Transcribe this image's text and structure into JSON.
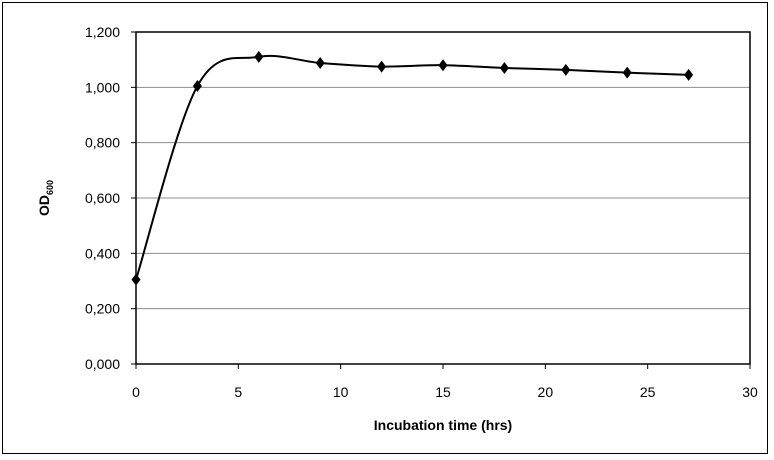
{
  "chart_data": {
    "type": "line",
    "title": "",
    "xlabel": "Incubation time (hrs)",
    "ylabel": {
      "main": "OD",
      "subscript": "600"
    },
    "xlim": [
      0,
      30
    ],
    "ylim": [
      0,
      1.2
    ],
    "x_ticks": [
      0,
      5,
      10,
      15,
      20,
      25,
      30
    ],
    "y_ticks": [
      "0,000",
      "0,200",
      "0,400",
      "0,600",
      "0,800",
      "1,000",
      "1,200"
    ],
    "y_tick_values": [
      0,
      0.2,
      0.4,
      0.6,
      0.8,
      1.0,
      1.2
    ],
    "grid": "horizontal",
    "legend": "none",
    "series": [
      {
        "marker": "diamond",
        "smooth": true,
        "color": "#000000",
        "x": [
          0,
          3,
          6,
          9,
          12,
          15,
          18,
          21,
          24,
          27
        ],
        "y": [
          0.305,
          1.005,
          1.11,
          1.088,
          1.075,
          1.08,
          1.07,
          1.063,
          1.053,
          1.045
        ]
      }
    ]
  }
}
